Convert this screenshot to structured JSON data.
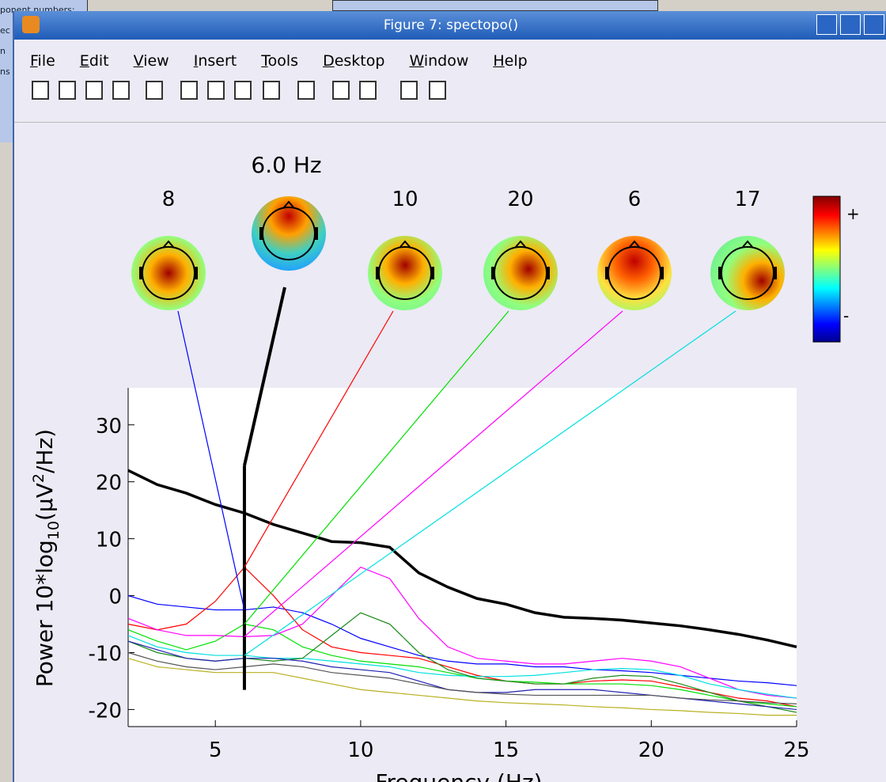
{
  "background": {
    "lines": [
      "ponent numbers:",
      "ec",
      "n",
      "ns"
    ]
  },
  "window": {
    "title": "Figure 7: spectopo()",
    "menu": [
      "File",
      "Edit",
      "View",
      "Insert",
      "Tools",
      "Desktop",
      "Window",
      "Help"
    ]
  },
  "chart_data": {
    "type": "line",
    "title": "6.0 Hz",
    "x_label": "Frequency (Hz)",
    "y_label": [
      "Power 10*log",
      "10",
      "(μV",
      "2",
      "/Hz)"
    ],
    "xlim": [
      2,
      25
    ],
    "xticks": [
      5,
      10,
      15,
      20,
      25
    ],
    "ylim": [
      -23,
      36.5
    ],
    "yticks": [
      -20,
      -10,
      0,
      10,
      20,
      30
    ],
    "marker_x": 6,
    "colorbar": {
      "max_label": "+",
      "min_label": "-"
    },
    "x": [
      2,
      3,
      4,
      5,
      6,
      7,
      8,
      9,
      10,
      11,
      12,
      13,
      14,
      15,
      16,
      17,
      18,
      19,
      20,
      21,
      22,
      23,
      24,
      25
    ],
    "series": [
      {
        "map_label": "8",
        "color": "#0000ff",
        "values": [
          0,
          -1.5,
          -2,
          -2.5,
          -2.5,
          -2,
          -3,
          -5,
          -7.5,
          -9,
          -10.5,
          -11.5,
          -12,
          -12,
          -12.5,
          -12.5,
          -13,
          -13.2,
          -13.5,
          -14,
          -14.5,
          -15,
          -15.3,
          -15.8
        ]
      },
      {
        "color": "#000000",
        "width": 3.5,
        "values": [
          22,
          19.5,
          18,
          16,
          14.5,
          12.5,
          11,
          9.5,
          9.3,
          8.5,
          4,
          1.5,
          -0.5,
          -1.5,
          -3,
          -3.8,
          -4,
          -4.3,
          -4.8,
          -5.3,
          -6,
          -6.8,
          -7.8,
          -9
        ]
      },
      {
        "map_label": "10",
        "color": "#ff0000",
        "values": [
          -5,
          -6,
          -5,
          -1,
          5,
          0,
          -6,
          -9,
          -10,
          -10.5,
          -11,
          -12.5,
          -14,
          -15,
          -15.5,
          -15.5,
          -15,
          -14.8,
          -15,
          -16,
          -17,
          -18,
          -18.5,
          -19.5
        ]
      },
      {
        "map_label": "20",
        "color": "#00e000",
        "values": [
          -6,
          -8,
          -9.5,
          -8,
          -5,
          -6,
          -9,
          -10.5,
          -11.5,
          -12,
          -12.5,
          -13.5,
          -14.5,
          -15,
          -15.2,
          -15.5,
          -15.5,
          -15.5,
          -15.8,
          -16.5,
          -17.5,
          -18.5,
          -19,
          -19.5
        ]
      },
      {
        "map_label": "6",
        "color": "#ff00ff",
        "values": [
          -4,
          -6,
          -7,
          -7,
          -7.2,
          -7,
          -5,
          0,
          5,
          3,
          -4,
          -9,
          -11,
          -11.5,
          -12,
          -12,
          -11.5,
          -11,
          -11.5,
          -12.5,
          -14.5,
          -16.5,
          -17.5,
          -18
        ]
      },
      {
        "map_label": "17",
        "color": "#00e0e0",
        "values": [
          -7,
          -9,
          -10,
          -10.5,
          -10.5,
          -11,
          -11,
          -11.5,
          -12,
          -12.5,
          -13.5,
          -14,
          -14.2,
          -14.2,
          -14,
          -13.5,
          -13,
          -12.8,
          -13,
          -14,
          -15.5,
          -16.5,
          -17.3,
          -18
        ]
      },
      {
        "color": "#1a8a1a",
        "values": [
          -8,
          -10,
          -11,
          -11.5,
          -11,
          -11.5,
          -11,
          -7,
          -3,
          -5,
          -10,
          -13,
          -14.5,
          -15,
          -15.5,
          -15.5,
          -14.5,
          -14,
          -14.2,
          -15.5,
          -17,
          -18.5,
          -19.5,
          -20.5
        ]
      },
      {
        "color": "#2020b0",
        "values": [
          -8,
          -9.5,
          -11,
          -11.5,
          -11,
          -11,
          -11.5,
          -12.5,
          -13,
          -13.5,
          -15,
          -16.5,
          -17,
          -17,
          -16.5,
          -16.5,
          -16.5,
          -17,
          -17.5,
          -18,
          -18.5,
          -19,
          -19.5,
          -20
        ]
      },
      {
        "color": "#555555",
        "values": [
          -10,
          -11.5,
          -12.5,
          -13,
          -12.5,
          -12,
          -12.5,
          -13.5,
          -14,
          -14.5,
          -15.5,
          -16.5,
          -17,
          -17.3,
          -17.5,
          -17.5,
          -17.5,
          -17.5,
          -17.5,
          -18,
          -18.3,
          -18.5,
          -18.8,
          -19
        ]
      },
      {
        "color": "#b8b020",
        "values": [
          -11,
          -12.5,
          -13,
          -13.5,
          -13.5,
          -13.5,
          -14.5,
          -15.5,
          -16.5,
          -17,
          -17.5,
          -18,
          -18.5,
          -18.8,
          -19,
          -19.2,
          -19.5,
          -19.7,
          -20,
          -20.2,
          -20.5,
          -20.7,
          -21,
          -21
        ]
      }
    ]
  }
}
